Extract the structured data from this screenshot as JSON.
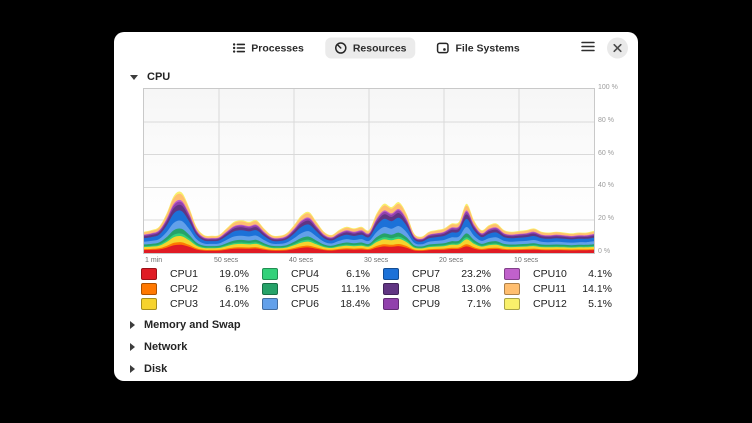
{
  "header": {
    "tabs": [
      {
        "label": "Processes",
        "icon": "list-icon",
        "selected": false
      },
      {
        "label": "Resources",
        "icon": "speedometer-icon",
        "selected": true
      },
      {
        "label": "File Systems",
        "icon": "drive-icon",
        "selected": false
      }
    ]
  },
  "sections": {
    "cpu": {
      "label": "CPU",
      "expanded": true
    },
    "memory_swap": {
      "label": "Memory and Swap",
      "expanded": false
    },
    "network": {
      "label": "Network",
      "expanded": false
    },
    "disk": {
      "label": "Disk",
      "expanded": false
    }
  },
  "chart_data": {
    "type": "area",
    "stacked": true,
    "title": "CPU",
    "x_tick_labels": [
      "1 min",
      "50 secs",
      "40 secs",
      "30 secs",
      "20 secs",
      "10 secs"
    ],
    "y_tick_labels": [
      "100 %",
      "80 %",
      "60 %",
      "40 %",
      "20 %",
      "0 %"
    ],
    "ylim": [
      0,
      100
    ],
    "x_range_seconds_ago": [
      60,
      0
    ],
    "sample_interval_seconds": 1,
    "grid": true,
    "legend_position": "bottom",
    "series": [
      {
        "name": "CPU1",
        "value": 19.0,
        "value_label": "19.0%",
        "color": "#e01b24"
      },
      {
        "name": "CPU2",
        "value": 6.1,
        "value_label": "6.1%",
        "color": "#ff7800"
      },
      {
        "name": "CPU3",
        "value": 14.0,
        "value_label": "14.0%",
        "color": "#f6d32d"
      },
      {
        "name": "CPU4",
        "value": 6.1,
        "value_label": "6.1%",
        "color": "#33d17a"
      },
      {
        "name": "CPU5",
        "value": 11.1,
        "value_label": "11.1%",
        "color": "#26a269"
      },
      {
        "name": "CPU6",
        "value": 18.4,
        "value_label": "18.4%",
        "color": "#62a0ea"
      },
      {
        "name": "CPU7",
        "value": 23.2,
        "value_label": "23.2%",
        "color": "#1c71d8"
      },
      {
        "name": "CPU8",
        "value": 13.0,
        "value_label": "13.0%",
        "color": "#613583"
      },
      {
        "name": "CPU9",
        "value": 7.1,
        "value_label": "7.1%",
        "color": "#9141ac"
      },
      {
        "name": "CPU10",
        "value": 4.1,
        "value_label": "4.1%",
        "color": "#c061cb"
      },
      {
        "name": "CPU11",
        "value": 14.1,
        "value_label": "14.1%",
        "color": "#ffbe6f"
      },
      {
        "name": "CPU12",
        "value": 5.1,
        "value_label": "5.1%",
        "color": "#f9f06b"
      }
    ],
    "stacked_total_percent": [
      13,
      14,
      16,
      24,
      35,
      37,
      28,
      16,
      11,
      10.5,
      11,
      15,
      19,
      20,
      19,
      20,
      15,
      11,
      10.5,
      12,
      17,
      23,
      25,
      19,
      13,
      11,
      14,
      16,
      15,
      16,
      14,
      24,
      30,
      28,
      31,
      24,
      12,
      10,
      13,
      14,
      15,
      18,
      19,
      30,
      20,
      14,
      17,
      18,
      14,
      13,
      13.5,
      14,
      15,
      13,
      12.5,
      13,
      12.5,
      12,
      12.5,
      12.5,
      13.5
    ]
  },
  "colors": {
    "selected_tab_bg": "#ebebeb",
    "window_bg": "#ffffff",
    "grid_line": "#d9d9d9",
    "chart_border": "#c9c9c9",
    "axis_label": "#9c9c9c"
  }
}
